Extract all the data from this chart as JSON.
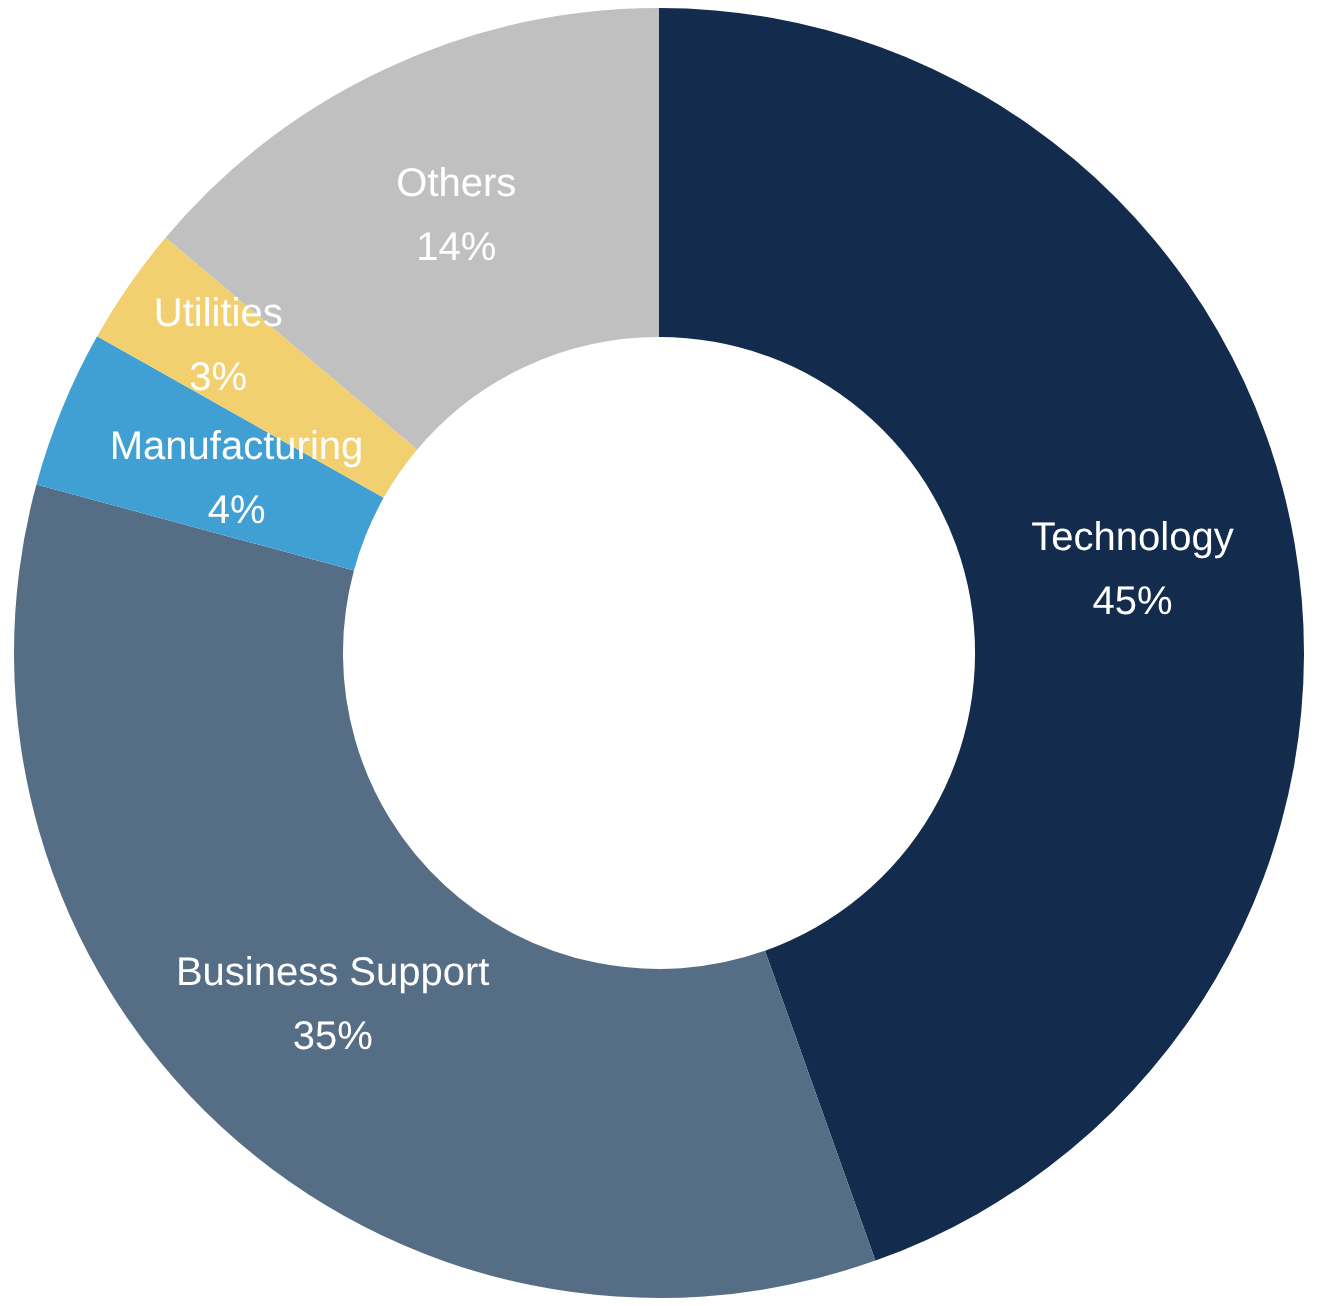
{
  "chart_data": {
    "type": "donut",
    "categories": [
      "Technology",
      "Business Support",
      "Manufacturing",
      "Utilities",
      "Others"
    ],
    "values": [
      45,
      35,
      4,
      3,
      14
    ],
    "value_labels": [
      "45%",
      "35%",
      "4%",
      "3%",
      "14%"
    ],
    "colors": [
      "#132b4c",
      "#566d86",
      "#40a0d4",
      "#f2d06f",
      "#c0c0c0"
    ],
    "legend": false
  }
}
